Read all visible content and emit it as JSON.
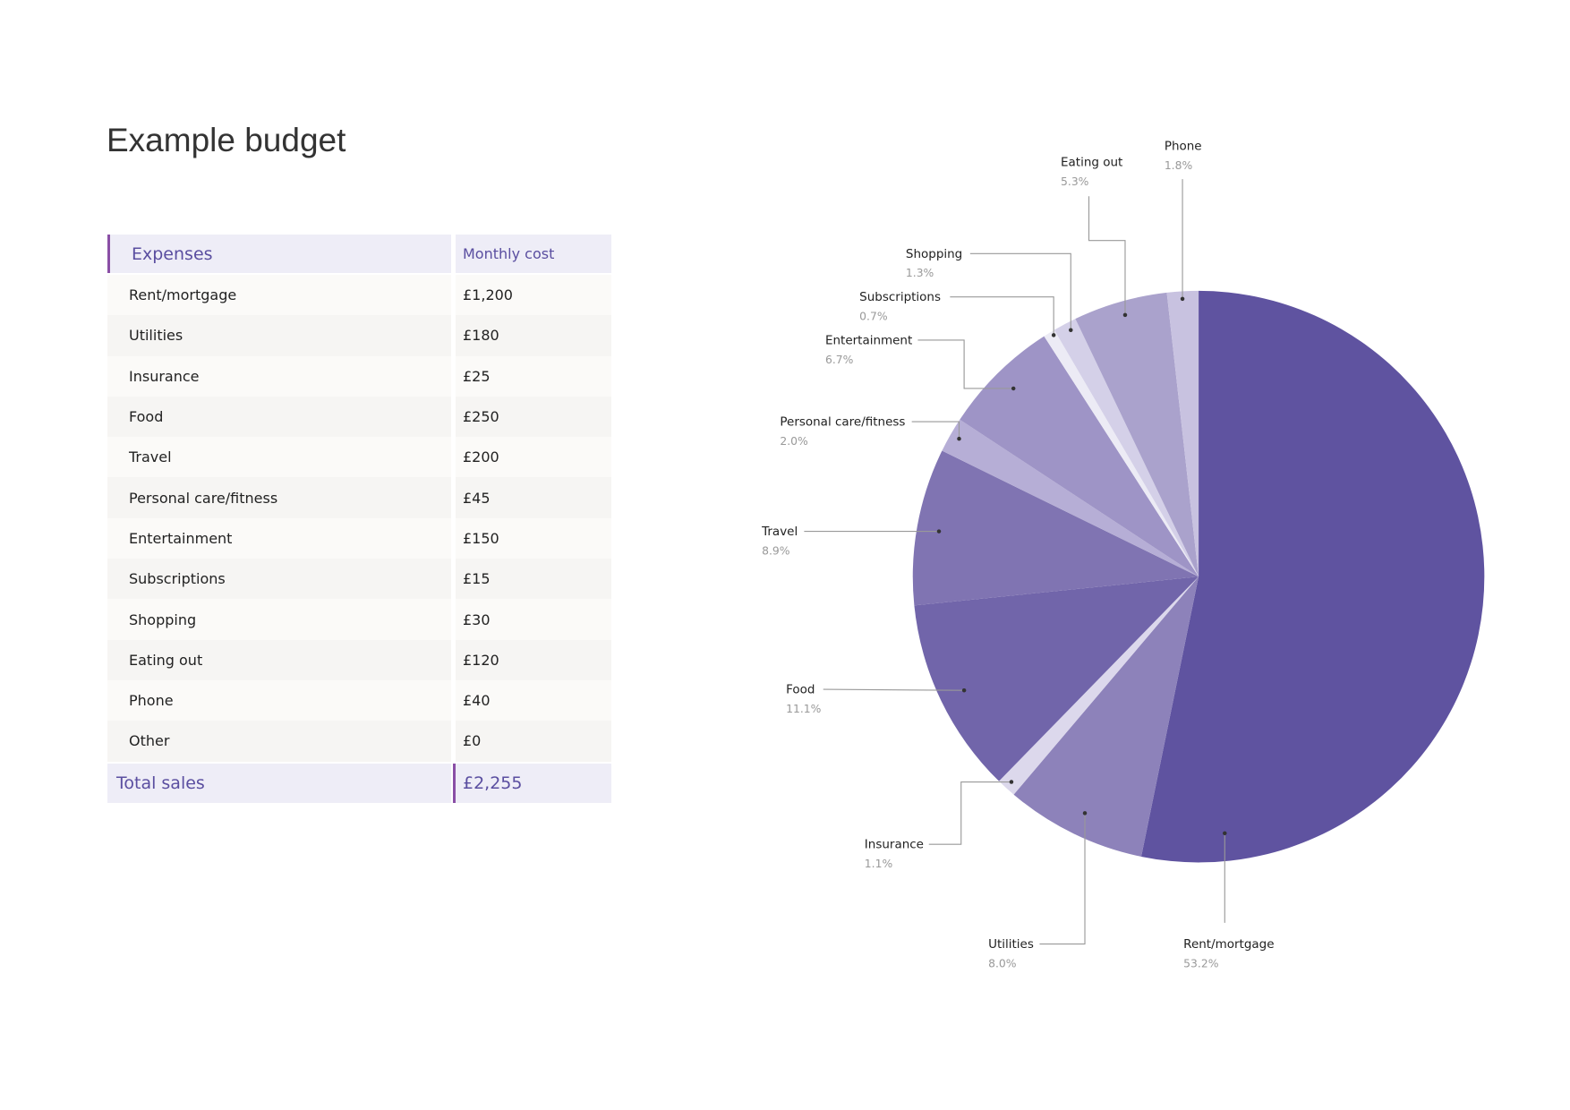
{
  "title": "Example budget",
  "table": {
    "headers": [
      "Expenses",
      "Monthly cost"
    ],
    "rows": [
      [
        "Rent/mortgage",
        "£1,200"
      ],
      [
        "Utilities",
        "£180"
      ],
      [
        "Insurance",
        "£25"
      ],
      [
        "Food",
        "£250"
      ],
      [
        "Travel",
        "£200"
      ],
      [
        "Personal care/fitness",
        "£45"
      ],
      [
        "Entertainment",
        "£150"
      ],
      [
        "Subscriptions",
        "£15"
      ],
      [
        "Shopping",
        "£30"
      ],
      [
        "Eating out",
        "£120"
      ],
      [
        "Phone",
        "£40"
      ],
      [
        "Other",
        "£0"
      ]
    ],
    "total": {
      "label": "Total sales",
      "value": "£2,255"
    }
  },
  "chart_data": {
    "type": "pie",
    "start": "12 o'clock, clockwise",
    "slices": [
      {
        "name": "Rent/mortgage",
        "value": 1200,
        "pct": "53.2%",
        "color": "#5f53a0"
      },
      {
        "name": "Utilities",
        "value": 180,
        "pct": "8.0%",
        "color": "#8d82ba"
      },
      {
        "name": "Insurance",
        "value": 25,
        "pct": "1.1%",
        "color": "#dcd8ec"
      },
      {
        "name": "Food",
        "value": 250,
        "pct": "11.1%",
        "color": "#7165aa"
      },
      {
        "name": "Travel",
        "value": 200,
        "pct": "8.9%",
        "color": "#8074b2"
      },
      {
        "name": "Personal care/fitness",
        "value": 45,
        "pct": "2.0%",
        "color": "#b6aed6"
      },
      {
        "name": "Entertainment",
        "value": 150,
        "pct": "6.7%",
        "color": "#9e94c6"
      },
      {
        "name": "Subscriptions",
        "value": 15,
        "pct": "0.7%",
        "color": "#ecebf5"
      },
      {
        "name": "Shopping",
        "value": 30,
        "pct": "1.3%",
        "color": "#d4d0e8"
      },
      {
        "name": "Eating out",
        "value": 120,
        "pct": "5.3%",
        "color": "#aaa2cc"
      },
      {
        "name": "Phone",
        "value": 40,
        "pct": "1.8%",
        "color": "#c8c2e0"
      }
    ]
  }
}
